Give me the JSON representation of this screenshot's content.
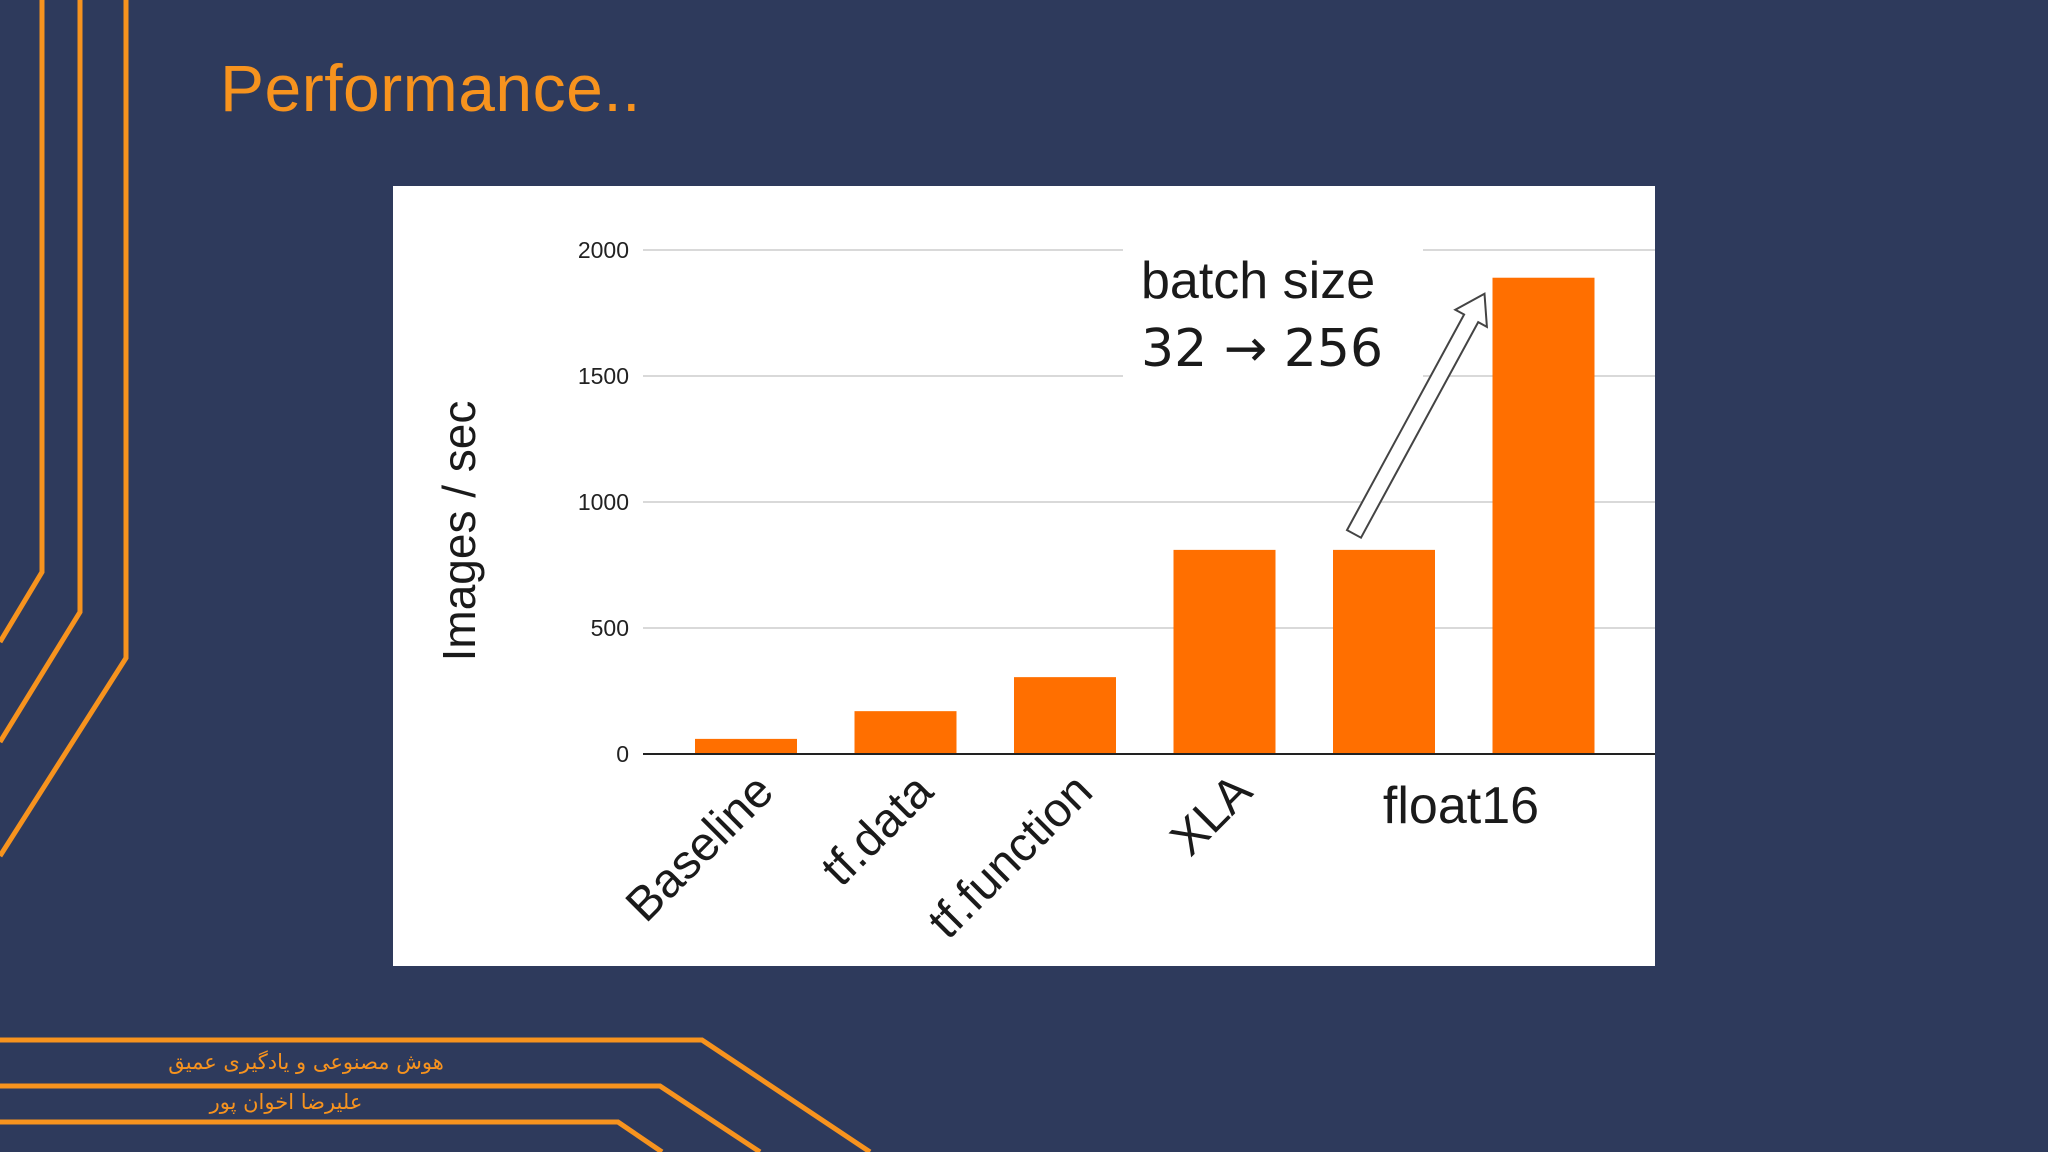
{
  "slide": {
    "title": "Performance..",
    "footer": {
      "line1": "هوش مصنوعی و یادگیری عمیق",
      "line2": "علیرضا  اخوان پور"
    }
  },
  "colors": {
    "background": "#2e3a5c",
    "accent": "#f7931e",
    "bar": "#ff6f00",
    "panel": "#ffffff"
  },
  "chart_data": {
    "type": "bar",
    "title": "",
    "ylabel": "Images / sec",
    "xlabel": "",
    "categories": [
      "Baseline",
      "tf.data",
      "tf.function",
      "XLA",
      "",
      ""
    ],
    "category_group_label": "float16",
    "values": [
      60,
      170,
      305,
      810,
      810,
      1890
    ],
    "ylim": [
      0,
      2000
    ],
    "yticks": [
      "0",
      "500",
      "1000",
      "1500",
      "2000"
    ],
    "ytick_values": [
      0,
      500,
      1000,
      1500,
      2000
    ],
    "grid": true,
    "annotation": {
      "line1": "batch size",
      "line2": "32 → 256",
      "arrow_from_bar": 4,
      "arrow_to_bar": 5
    }
  }
}
